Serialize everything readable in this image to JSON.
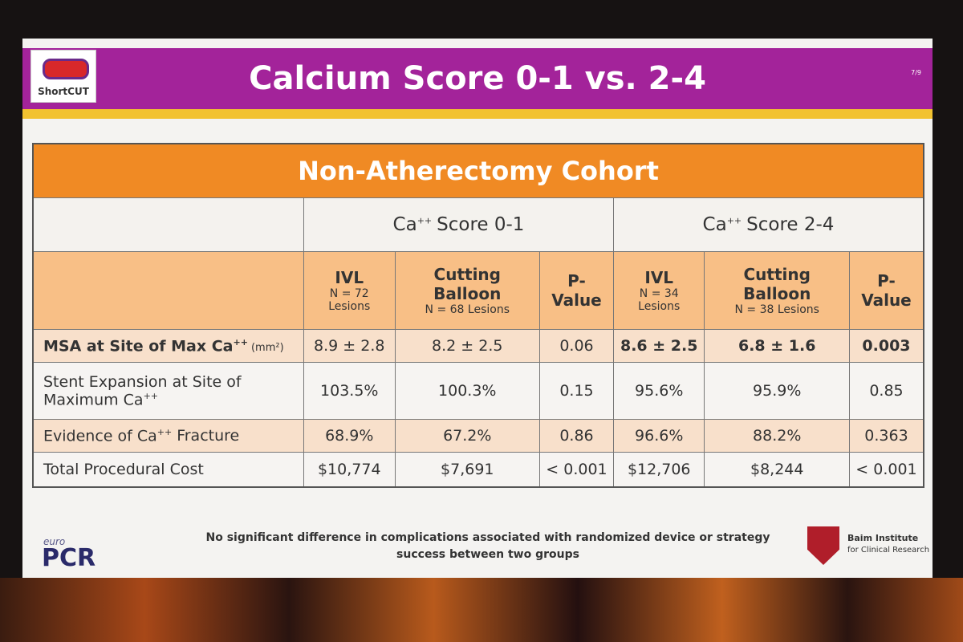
{
  "header": {
    "logo": "ShortCUT",
    "title": "Calcium Score 0-1 vs. 2-4",
    "page": "7/9"
  },
  "table": {
    "title": "Non-Atherectomy Cohort",
    "groups": [
      {
        "text": "Ca",
        "sup": "++",
        "after": "Score 0-1"
      },
      {
        "text": "Ca",
        "sup": "++",
        "after": "Score 2-4"
      }
    ],
    "columns": [
      {
        "name": "IVL",
        "n": "N = 72 Lesions"
      },
      {
        "name": "Cutting Balloon",
        "n": "N = 68 Lesions"
      },
      {
        "name": "P-Value"
      },
      {
        "name": "IVL",
        "n": "N = 34 Lesions"
      },
      {
        "name": "Cutting Balloon",
        "n": "N = 38 Lesions"
      },
      {
        "name": "P-Value"
      }
    ],
    "rows": [
      {
        "label": {
          "text": "MSA at Site of Max Ca",
          "sup": "++",
          "unit": "(mm²)"
        },
        "cells": [
          "8.9 ± 2.8",
          "8.2 ± 2.5",
          "0.06",
          "8.6 ± 2.5",
          "6.8 ± 1.6",
          "0.003"
        ]
      },
      {
        "label": {
          "text": "Stent Expansion at Site of Maximum Ca",
          "sup": "++"
        },
        "cells": [
          "103.5%",
          "100.3%",
          "0.15",
          "95.6%",
          "95.9%",
          "0.85"
        ]
      },
      {
        "label": {
          "text": "Evidence of Ca",
          "sup": "++",
          "after": "Fracture"
        },
        "cells": [
          "68.9%",
          "67.2%",
          "0.86",
          "96.6%",
          "88.2%",
          "0.363"
        ]
      },
      {
        "label": {
          "text": "Total Procedural Cost"
        },
        "cells": [
          "$10,774",
          "$7,691",
          "< 0.001",
          "$12,706",
          "$8,244",
          "< 0.001"
        ]
      }
    ]
  },
  "footer": {
    "note": "No significant difference in complications associated with randomized device or strategy success between two groups",
    "left_logo": {
      "small": "euro",
      "big": "PCR"
    },
    "right_logo": {
      "name": "Baim Institute",
      "sub": "for Clinical Research"
    }
  }
}
